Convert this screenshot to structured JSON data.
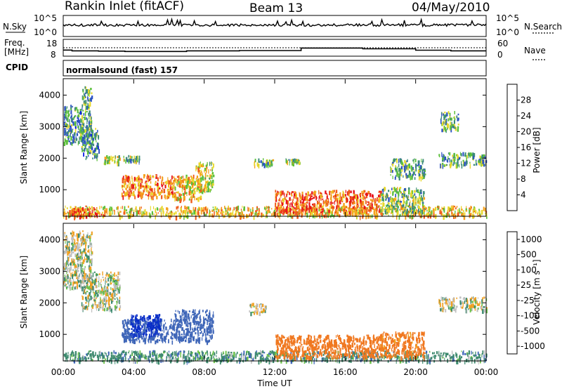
{
  "header": {
    "station": "Rankin Inlet (fitACF)",
    "beam": "Beam 13",
    "date": "04/May/2010"
  },
  "noise_panel": {
    "left_label": "N.Sky",
    "right_label": "N.Search",
    "left_ticks": [
      "10^5",
      "10^0"
    ],
    "right_ticks": [
      "10^5",
      "10^0"
    ]
  },
  "freq_panel": {
    "left_label_line1": "Freq.",
    "left_label_line2": "[MHz]",
    "right_label": "Nave",
    "left_ticks": [
      "18",
      "8"
    ],
    "right_ticks": [
      "60",
      "0"
    ]
  },
  "cpid_panel": {
    "label": "CPID",
    "program": "normalsound (fast) 157"
  },
  "xaxis": {
    "label": "Time UT",
    "ticks": [
      "00:00",
      "04:00",
      "08:00",
      "12:00",
      "16:00",
      "20:00",
      "00:00"
    ]
  },
  "power_colorbar": {
    "label": "Power [dB]",
    "ticks": [
      "4",
      "8",
      "12",
      "16",
      "20",
      "24",
      "28"
    ],
    "colors": [
      "#0a18e6",
      "#2c52c4",
      "#3d8a7a",
      "#5cc03c",
      "#e8d82a",
      "#f5a11d",
      "#ef5b1a",
      "#e6131a"
    ]
  },
  "velocity_colorbar": {
    "label": "Velocity [m s⁻¹]",
    "ticks": [
      "1000",
      "500",
      "100",
      "25",
      "-25",
      "-100",
      "-500",
      "-1000"
    ],
    "colors": [
      "#0a2fc8",
      "#3f66b8",
      "#3d8a6e",
      "#6cc24a",
      "#c0c0c0",
      "#f0a020",
      "#f07820",
      "#e2231a"
    ]
  },
  "chart_data": {
    "type": "heatmap",
    "title": "Rankin Inlet (fitACF) Beam 13 04/May/2010",
    "xlabel": "Time UT",
    "ylabel": "Slant Range [km]",
    "x_range_hours": [
      0,
      24
    ],
    "y_range_km": [
      180,
      4500
    ],
    "y_ticks": [
      1000,
      2000,
      3000,
      4000
    ],
    "panels": [
      {
        "name": "Power",
        "unit": "dB",
        "scale": [
          0,
          30
        ],
        "echo_regions": [
          {
            "t0": 0.0,
            "t1": 24.0,
            "r0": 180,
            "r1": 500,
            "value": 20
          },
          {
            "t0": 0.3,
            "t1": 2.3,
            "r0": 180,
            "r1": 450,
            "value": 26
          },
          {
            "t0": 0.0,
            "t1": 1.0,
            "r0": 2500,
            "r1": 3700,
            "value": 10
          },
          {
            "t0": 1.0,
            "t1": 1.6,
            "r0": 2700,
            "r1": 4300,
            "value": 12
          },
          {
            "t0": 1.0,
            "t1": 2.0,
            "r0": 2000,
            "r1": 3000,
            "value": 10
          },
          {
            "t0": 2.3,
            "t1": 3.2,
            "r0": 1850,
            "r1": 2100,
            "value": 16
          },
          {
            "t0": 3.4,
            "t1": 4.3,
            "r0": 1900,
            "r1": 2100,
            "value": 14
          },
          {
            "t0": 3.3,
            "t1": 6.3,
            "r0": 800,
            "r1": 1500,
            "value": 24
          },
          {
            "t0": 6.3,
            "t1": 7.8,
            "r0": 700,
            "r1": 1500,
            "value": 20
          },
          {
            "t0": 7.5,
            "t1": 8.5,
            "r0": 1000,
            "r1": 1900,
            "value": 18
          },
          {
            "t0": 10.8,
            "t1": 11.9,
            "r0": 1750,
            "r1": 2000,
            "value": 14
          },
          {
            "t0": 12.6,
            "t1": 13.4,
            "r0": 1850,
            "r1": 2000,
            "value": 14
          },
          {
            "t0": 12.0,
            "t1": 18.0,
            "r0": 300,
            "r1": 1000,
            "value": 26
          },
          {
            "t0": 18.0,
            "t1": 20.5,
            "r0": 300,
            "r1": 1100,
            "value": 14
          },
          {
            "t0": 18.5,
            "t1": 20.5,
            "r0": 1400,
            "r1": 2000,
            "value": 12
          },
          {
            "t0": 21.3,
            "t1": 24.0,
            "r0": 1800,
            "r1": 2200,
            "value": 12
          },
          {
            "t0": 21.4,
            "t1": 22.4,
            "r0": 2900,
            "r1": 3500,
            "value": 12
          }
        ]
      },
      {
        "name": "Velocity",
        "unit": "m s-1",
        "scale": [
          -1000,
          1000
        ],
        "echo_regions": [
          {
            "t0": 0.0,
            "t1": 24.0,
            "r0": 180,
            "r1": 500,
            "value": 60
          },
          {
            "t0": 0.0,
            "t1": 1.6,
            "r0": 2500,
            "r1": 4300,
            "value": 0
          },
          {
            "t0": 1.0,
            "t1": 3.2,
            "r0": 1800,
            "r1": 3000,
            "value": 0
          },
          {
            "t0": 3.3,
            "t1": 6.3,
            "r0": 800,
            "r1": 1500,
            "value": 400
          },
          {
            "t0": 3.8,
            "t1": 5.5,
            "r0": 1000,
            "r1": 1650,
            "value": 900
          },
          {
            "t0": 6.3,
            "t1": 8.5,
            "r0": 800,
            "r1": 1800,
            "value": 300
          },
          {
            "t0": 12.0,
            "t1": 18.0,
            "r0": 300,
            "r1": 1000,
            "value": -400
          },
          {
            "t0": 18.0,
            "t1": 20.5,
            "r0": 300,
            "r1": 1100,
            "value": -150
          },
          {
            "t0": 21.3,
            "t1": 24.0,
            "r0": 1800,
            "r1": 2200,
            "value": 0
          },
          {
            "t0": 10.5,
            "t1": 11.5,
            "r0": 1700,
            "r1": 2000,
            "value": 0
          }
        ]
      }
    ],
    "noise_sky": {
      "level": 0.55
    },
    "frequency_mhz": [
      {
        "t0": 0.0,
        "t1": 0.5,
        "v": 11.5
      },
      {
        "t0": 0.5,
        "t1": 2.0,
        "v": 11.0
      },
      {
        "t0": 2.0,
        "t1": 3.5,
        "v": 10.8
      },
      {
        "t0": 3.5,
        "t1": 7.0,
        "v": 10.6
      },
      {
        "t0": 7.0,
        "t1": 10.0,
        "v": 11.0
      },
      {
        "t0": 10.0,
        "t1": 13.5,
        "v": 11.2
      },
      {
        "t0": 13.5,
        "t1": 17.0,
        "v": 12.8
      },
      {
        "t0": 17.0,
        "t1": 20.0,
        "v": 12.3
      },
      {
        "t0": 20.0,
        "t1": 22.0,
        "v": 11.4
      },
      {
        "t0": 22.0,
        "t1": 24.0,
        "v": 11.0
      }
    ],
    "nave_reference": 25
  }
}
